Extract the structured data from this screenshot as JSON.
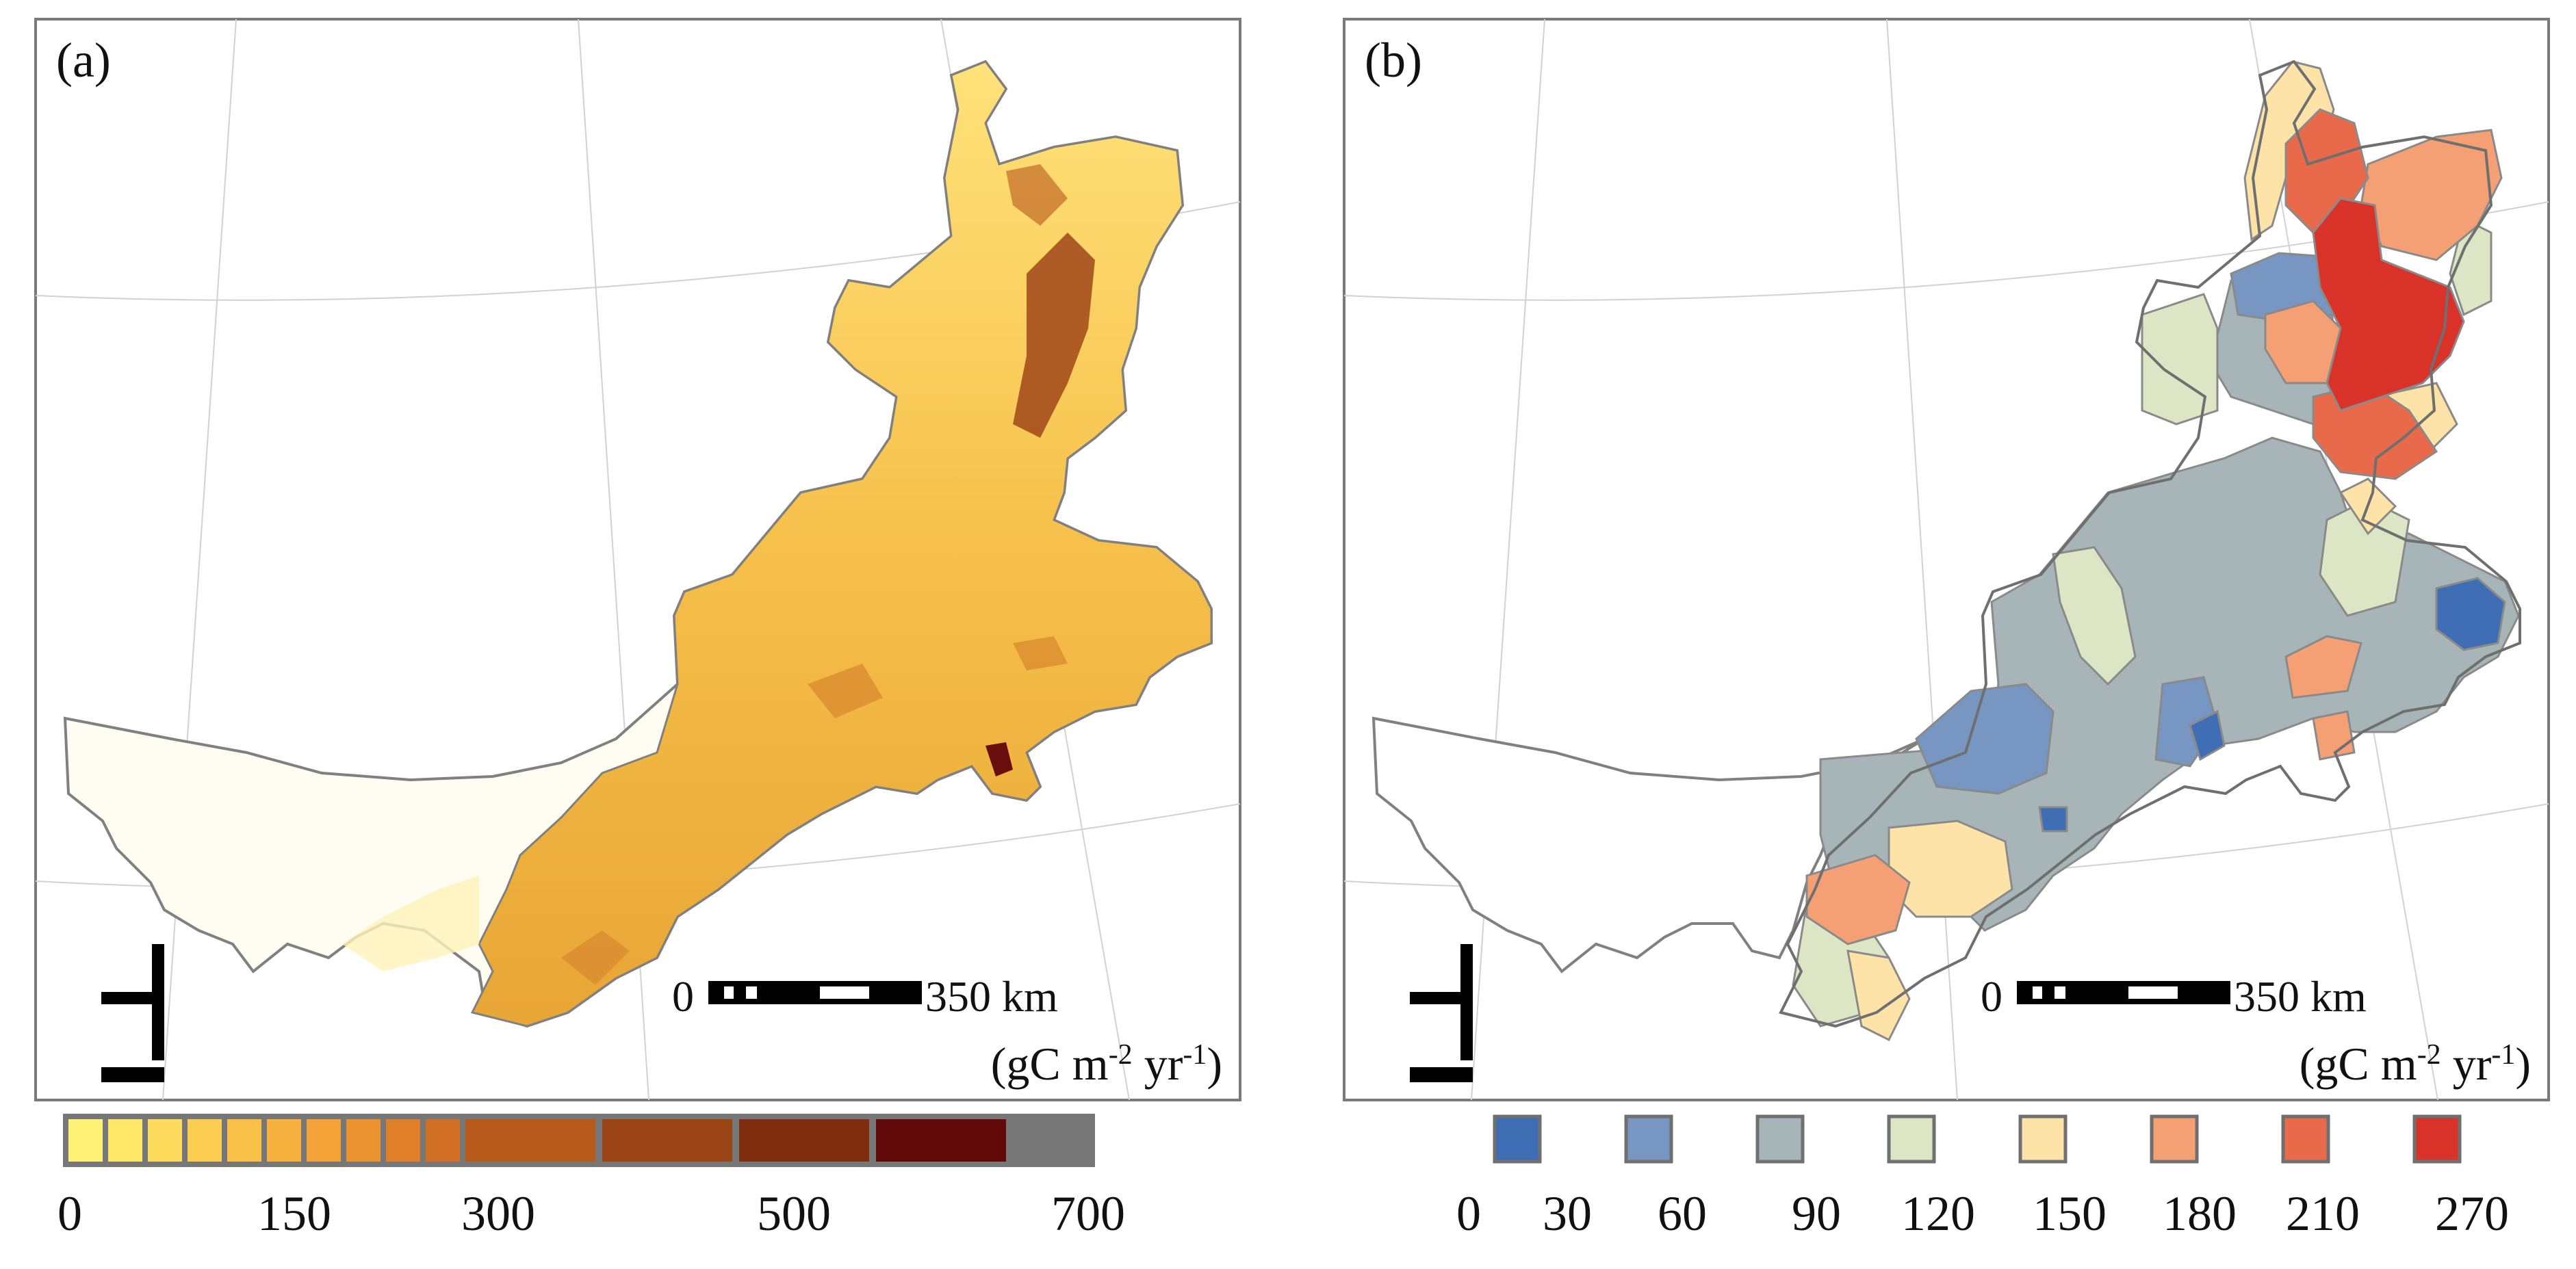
{
  "panels": [
    {
      "label": "(a)",
      "scale_bar": {
        "zero": "0",
        "distance": "350 km"
      },
      "unit": {
        "open": "(gC m",
        "sup1": "-2",
        "mid": " yr",
        "sup2": "-1",
        "close": ")"
      }
    },
    {
      "label": "(b)",
      "scale_bar": {
        "zero": "0",
        "distance": "350 km"
      },
      "unit": {
        "open": "(gC m",
        "sup1": "-2",
        "mid": " yr",
        "sup2": "-1",
        "close": ")"
      }
    }
  ],
  "legend_a": {
    "tick_labels": [
      "0",
      "150",
      "300",
      "500",
      "700"
    ],
    "colors": [
      "#fff176",
      "#fde768",
      "#fddb5c",
      "#fbce52",
      "#f9c048",
      "#f6b13e",
      "#f2a236",
      "#ea9130",
      "#df7f2a",
      "#d06e24",
      "#b85a1c",
      "#9b4516",
      "#7f2f10",
      "#620a0a"
    ]
  },
  "legend_b": {
    "tick_labels": [
      "0",
      "30",
      "60",
      "90",
      "120",
      "150",
      "180",
      "210",
      "270"
    ],
    "colors": [
      "#3f6eb5",
      "#7896c2",
      "#a7b5b8",
      "#dce6c4",
      "#fde3a7",
      "#f4a074",
      "#e86a4a",
      "#d93228"
    ]
  }
}
